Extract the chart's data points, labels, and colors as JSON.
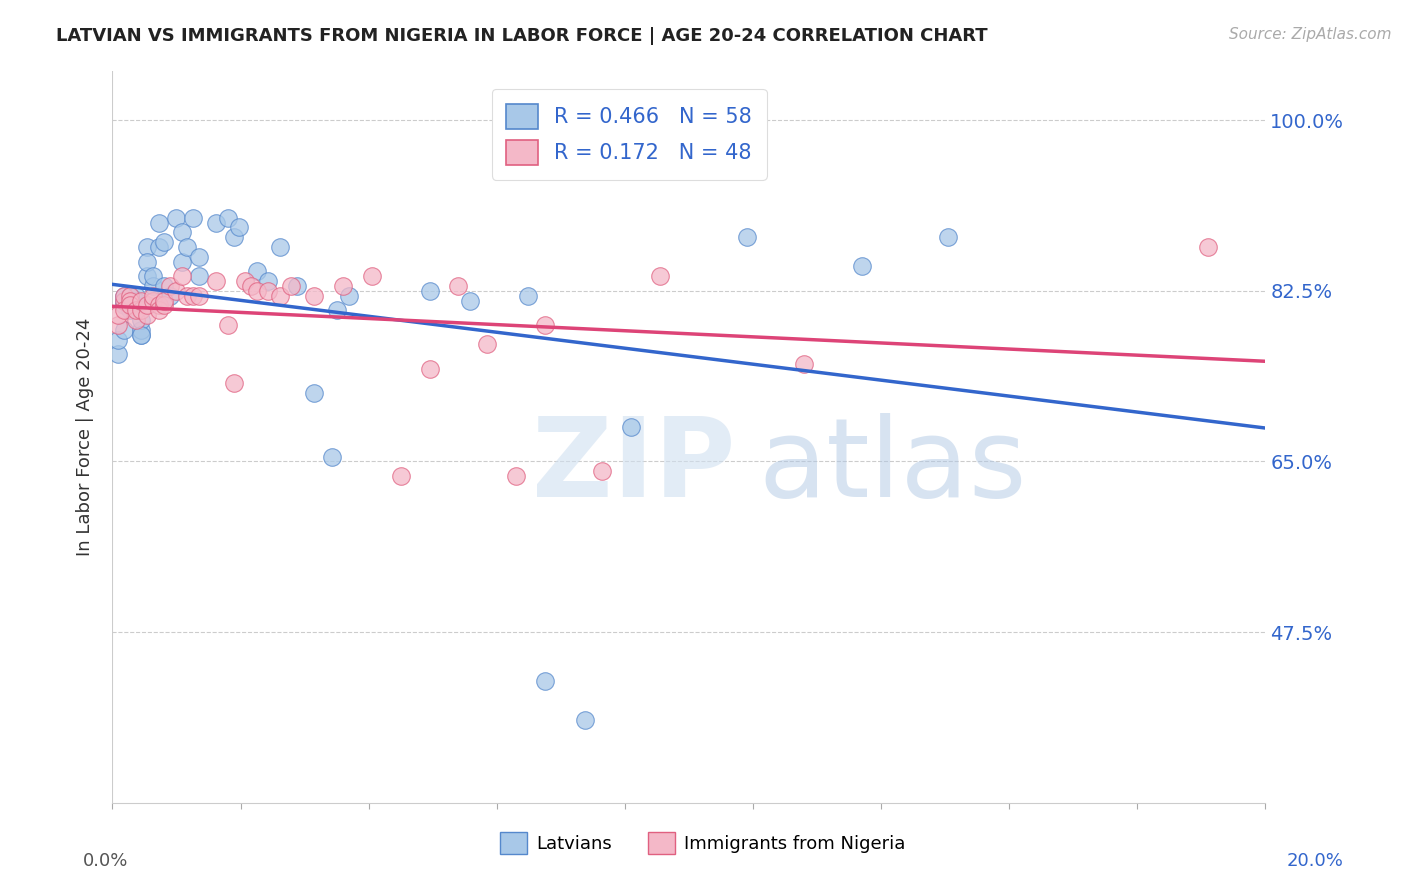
{
  "title": "LATVIAN VS IMMIGRANTS FROM NIGERIA IN LABOR FORCE | AGE 20-24 CORRELATION CHART",
  "source": "Source: ZipAtlas.com",
  "ylabel": "In Labor Force | Age 20-24",
  "ytick_labels": [
    "100.0%",
    "82.5%",
    "65.0%",
    "47.5%"
  ],
  "ytick_values": [
    1.0,
    0.825,
    0.65,
    0.475
  ],
  "xlim": [
    0.0,
    0.2
  ],
  "ylim": [
    0.3,
    1.05
  ],
  "latvian_color": "#a8c8e8",
  "nigeria_color": "#f4b8c8",
  "latvian_edge_color": "#5588cc",
  "nigeria_edge_color": "#e06080",
  "latvian_line_color": "#3366cc",
  "nigeria_line_color": "#dd4477",
  "legend_latvian_label": "R = 0.466   N = 58",
  "legend_nigeria_label": "R = 0.172   N = 48",
  "watermark_zip": "ZIP",
  "watermark_atlas": "atlas",
  "latvian_x": [
    0.001,
    0.001,
    0.002,
    0.002,
    0.002,
    0.002,
    0.003,
    0.003,
    0.003,
    0.003,
    0.003,
    0.004,
    0.004,
    0.004,
    0.004,
    0.004,
    0.005,
    0.005,
    0.005,
    0.005,
    0.006,
    0.006,
    0.006,
    0.007,
    0.007,
    0.008,
    0.008,
    0.009,
    0.009,
    0.01,
    0.011,
    0.012,
    0.012,
    0.013,
    0.014,
    0.015,
    0.015,
    0.018,
    0.02,
    0.021,
    0.022,
    0.025,
    0.027,
    0.029,
    0.032,
    0.035,
    0.038,
    0.039,
    0.041,
    0.055,
    0.062,
    0.072,
    0.075,
    0.082,
    0.09,
    0.11,
    0.13,
    0.145
  ],
  "latvian_y": [
    0.76,
    0.775,
    0.82,
    0.81,
    0.815,
    0.785,
    0.82,
    0.815,
    0.82,
    0.815,
    0.805,
    0.815,
    0.81,
    0.815,
    0.815,
    0.82,
    0.78,
    0.785,
    0.795,
    0.78,
    0.87,
    0.84,
    0.855,
    0.83,
    0.84,
    0.895,
    0.87,
    0.875,
    0.83,
    0.82,
    0.9,
    0.885,
    0.855,
    0.87,
    0.9,
    0.84,
    0.86,
    0.895,
    0.9,
    0.88,
    0.89,
    0.845,
    0.835,
    0.87,
    0.83,
    0.72,
    0.655,
    0.805,
    0.82,
    0.825,
    0.815,
    0.82,
    0.425,
    0.385,
    0.685,
    0.88,
    0.85,
    0.88
  ],
  "nigeria_x": [
    0.001,
    0.001,
    0.002,
    0.002,
    0.002,
    0.003,
    0.003,
    0.003,
    0.004,
    0.004,
    0.005,
    0.005,
    0.006,
    0.006,
    0.007,
    0.007,
    0.008,
    0.008,
    0.009,
    0.009,
    0.01,
    0.011,
    0.012,
    0.013,
    0.014,
    0.015,
    0.018,
    0.02,
    0.021,
    0.023,
    0.024,
    0.025,
    0.027,
    0.029,
    0.031,
    0.035,
    0.04,
    0.045,
    0.05,
    0.055,
    0.06,
    0.065,
    0.07,
    0.075,
    0.085,
    0.095,
    0.12,
    0.19
  ],
  "nigeria_y": [
    0.79,
    0.8,
    0.815,
    0.82,
    0.805,
    0.82,
    0.815,
    0.81,
    0.795,
    0.805,
    0.805,
    0.815,
    0.8,
    0.81,
    0.815,
    0.82,
    0.81,
    0.805,
    0.81,
    0.815,
    0.83,
    0.825,
    0.84,
    0.82,
    0.82,
    0.82,
    0.835,
    0.79,
    0.73,
    0.835,
    0.83,
    0.825,
    0.825,
    0.82,
    0.83,
    0.82,
    0.83,
    0.84,
    0.635,
    0.745,
    0.83,
    0.77,
    0.635,
    0.79,
    0.64,
    0.84,
    0.75,
    0.87
  ]
}
